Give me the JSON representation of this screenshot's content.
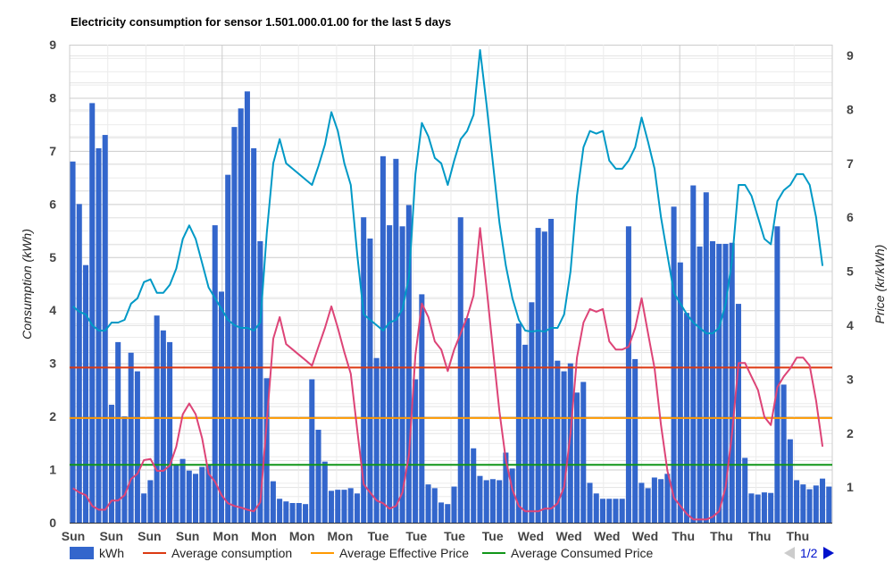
{
  "chart_data": {
    "type": "bar",
    "title": "Electricity consumption for sensor 1.501.000.01.00 for the last 5 days",
    "ylabel": "Consumption (kWh)",
    "y2label": "Price (kr/kWh)",
    "ylim": [
      0,
      9
    ],
    "y2lim": [
      0.34,
      9.2
    ],
    "yticks": [
      "0",
      "1",
      "2",
      "3",
      "4",
      "5",
      "6",
      "7",
      "8",
      "9"
    ],
    "y2ticks": [
      "1",
      "2",
      "3",
      "4",
      "5",
      "6",
      "7",
      "8",
      "9"
    ],
    "xticks": [
      "Sun",
      "Sun",
      "Sun",
      "Sun",
      "Mon",
      "Mon",
      "Mon",
      "Mon",
      "Tue",
      "Tue",
      "Tue",
      "Tue",
      "Wed",
      "Wed",
      "Wed",
      "Wed",
      "Thu",
      "Thu",
      "Thu",
      "Thu"
    ],
    "grid": true,
    "legend_position": "bottom",
    "series": [
      {
        "name": "kWh",
        "type": "bar",
        "axis": "left",
        "color": "#3366cc",
        "values": [
          6.8,
          6.0,
          4.85,
          7.9,
          7.05,
          7.3,
          2.22,
          3.4,
          2.0,
          3.2,
          2.85,
          0.55,
          0.8,
          3.9,
          3.62,
          3.4,
          1.1,
          1.2,
          0.98,
          0.92,
          1.05,
          1.1,
          5.6,
          4.35,
          6.55,
          7.45,
          7.8,
          8.12,
          7.05,
          5.3,
          2.72,
          0.78,
          0.45,
          0.4,
          0.37,
          0.37,
          0.35,
          2.7,
          1.75,
          1.15,
          0.6,
          0.62,
          0.62,
          0.65,
          0.55,
          5.75,
          5.35,
          3.1,
          6.9,
          5.6,
          6.85,
          5.58,
          5.98,
          2.7,
          4.3,
          0.72,
          0.65,
          0.38,
          0.35,
          0.68,
          5.75,
          3.85,
          1.4,
          0.88,
          0.8,
          0.82,
          0.8,
          1.32,
          1.02,
          3.75,
          3.35,
          4.15,
          5.55,
          5.48,
          5.72,
          3.05,
          2.85,
          3.0,
          2.45,
          2.65,
          0.75,
          0.55,
          0.45,
          0.45,
          0.45,
          0.45,
          5.58,
          3.08,
          0.75,
          0.65,
          0.85,
          0.82,
          0.92,
          5.95,
          4.9,
          3.95,
          6.35,
          5.2,
          6.22,
          5.3,
          5.25,
          5.25,
          5.27,
          4.12,
          1.22,
          0.55,
          0.53,
          0.57,
          0.56,
          5.58,
          2.6,
          1.57,
          0.8,
          0.72,
          0.63,
          0.7,
          0.83,
          0.68
        ]
      },
      {
        "name": "Average consumption",
        "type": "hline",
        "axis": "left",
        "color": "#dc3912",
        "value": 2.92
      },
      {
        "name": "Average Effective Price",
        "type": "hline",
        "axis": "left",
        "color": "#ff9900",
        "value": 1.97
      },
      {
        "name": "Average Consumed Price",
        "type": "hline",
        "axis": "left",
        "color": "#109618",
        "value": 1.09
      },
      {
        "name": "Effective Price",
        "type": "line",
        "axis": "right",
        "color": "#0099c6",
        "values": [
          4.35,
          4.25,
          4.2,
          4.0,
          3.9,
          3.9,
          4.05,
          4.05,
          4.1,
          4.4,
          4.5,
          4.8,
          4.85,
          4.6,
          4.6,
          4.75,
          5.05,
          5.6,
          5.85,
          5.6,
          5.15,
          4.7,
          4.5,
          4.3,
          4.1,
          4.0,
          3.95,
          3.95,
          3.9,
          4.05,
          5.7,
          7.0,
          7.45,
          7.0,
          6.9,
          6.8,
          6.7,
          6.6,
          6.95,
          7.35,
          7.95,
          7.6,
          7.0,
          6.6,
          5.3,
          4.2,
          4.1,
          4.0,
          3.9,
          4.05,
          4.1,
          4.3,
          4.9,
          6.8,
          7.75,
          7.5,
          7.1,
          7.0,
          6.6,
          7.05,
          7.45,
          7.6,
          7.9,
          9.1,
          8.1,
          7.0,
          5.9,
          5.1,
          4.5,
          4.1,
          3.9,
          3.88,
          3.9,
          3.88,
          3.95,
          3.95,
          4.2,
          5.0,
          6.4,
          7.3,
          7.6,
          7.55,
          7.6,
          7.05,
          6.9,
          6.9,
          7.05,
          7.3,
          7.85,
          7.4,
          6.9,
          6.0,
          5.3,
          4.6,
          4.4,
          4.2,
          4.05,
          3.95,
          3.85,
          3.85,
          3.95,
          4.4,
          5.2,
          6.6,
          6.6,
          6.4,
          6.0,
          5.6,
          5.5,
          6.3,
          6.5,
          6.6,
          6.8,
          6.8,
          6.6,
          6.0,
          5.1
        ]
      },
      {
        "name": "Consumed Price",
        "type": "line",
        "axis": "right",
        "color": "#dd4477",
        "values": [
          0.98,
          0.9,
          0.85,
          0.65,
          0.58,
          0.58,
          0.75,
          0.75,
          0.85,
          1.15,
          1.25,
          1.5,
          1.52,
          1.3,
          1.3,
          1.4,
          1.75,
          2.35,
          2.55,
          2.35,
          1.9,
          1.25,
          1.1,
          0.85,
          0.7,
          0.65,
          0.62,
          0.58,
          0.55,
          0.72,
          2.2,
          3.75,
          4.15,
          3.65,
          3.55,
          3.45,
          3.35,
          3.25,
          3.6,
          3.95,
          4.35,
          3.95,
          3.5,
          3.1,
          2.05,
          1.05,
          0.9,
          0.75,
          0.7,
          0.6,
          0.65,
          0.9,
          1.6,
          3.45,
          4.4,
          4.15,
          3.7,
          3.55,
          3.15,
          3.55,
          3.85,
          4.15,
          4.55,
          5.8,
          4.7,
          3.55,
          2.4,
          1.5,
          0.95,
          0.65,
          0.55,
          0.55,
          0.55,
          0.6,
          0.6,
          0.7,
          1.0,
          2.0,
          3.4,
          4.05,
          4.3,
          4.25,
          4.3,
          3.7,
          3.55,
          3.55,
          3.6,
          3.95,
          4.5,
          3.85,
          3.2,
          2.15,
          1.3,
          0.8,
          0.65,
          0.5,
          0.4,
          0.4,
          0.4,
          0.45,
          0.55,
          1.0,
          2.0,
          3.3,
          3.3,
          3.05,
          2.8,
          2.3,
          2.15,
          2.85,
          3.05,
          3.2,
          3.4,
          3.4,
          3.25,
          2.6,
          1.75
        ]
      }
    ],
    "legend": [
      {
        "label": "kWh",
        "kind": "box",
        "color": "#3366cc"
      },
      {
        "label": "Average consumption",
        "kind": "line",
        "color": "#dc3912"
      },
      {
        "label": "Average Effective Price",
        "kind": "line",
        "color": "#ff9900"
      },
      {
        "label": "Average Consumed Price",
        "kind": "line",
        "color": "#109618"
      }
    ],
    "legend_page": "1/2"
  }
}
